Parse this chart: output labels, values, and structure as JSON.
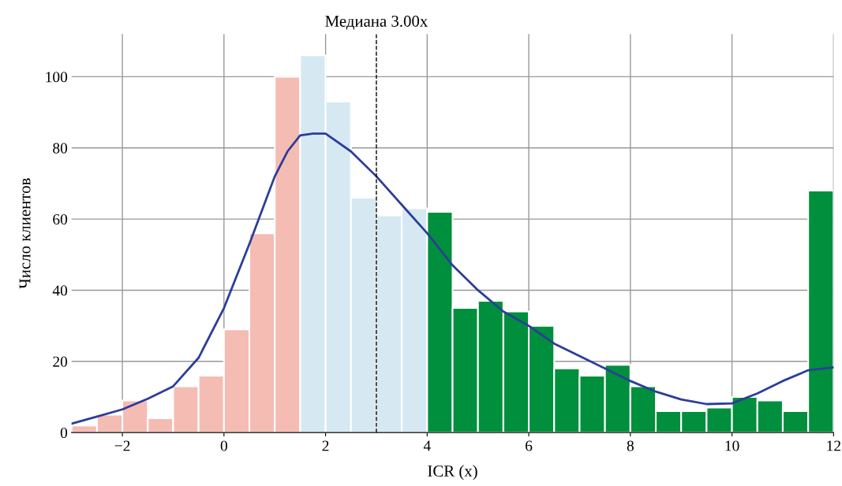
{
  "chart_data": {
    "type": "histogram",
    "xlabel": "ICR (x)",
    "ylabel": "Число клиентов",
    "bins": [
      -3,
      -2.5,
      -2,
      -1.5,
      -1,
      -0.5,
      0,
      0.5,
      1,
      1.5,
      2,
      2.5,
      3,
      3.5,
      4,
      4.5,
      5,
      5.5,
      6,
      6.5,
      7,
      7.5,
      8,
      8.5,
      9,
      9.5,
      10,
      10.5,
      11,
      11.5,
      12
    ],
    "series": [
      {
        "values": [
          2,
          5,
          9,
          4,
          13,
          16,
          29,
          56,
          100,
          106,
          93,
          66,
          61,
          63,
          62,
          35,
          37,
          34,
          30,
          18,
          16,
          19,
          13,
          6,
          6,
          7,
          10,
          9,
          6,
          68
        ],
        "colors": [
          "#f5bcb4",
          "#f5bcb4",
          "#f5bcb4",
          "#f5bcb4",
          "#f5bcb4",
          "#f5bcb4",
          "#f5bcb4",
          "#f5bcb4",
          "#f5bcb4",
          "#d6e9f2",
          "#d6e9f2",
          "#d6e9f2",
          "#d6e9f2",
          "#d6e9f2",
          "#008f3c",
          "#008f3c",
          "#008f3c",
          "#008f3c",
          "#008f3c",
          "#008f3c",
          "#008f3c",
          "#008f3c",
          "#008f3c",
          "#008f3c",
          "#008f3c",
          "#008f3c",
          "#008f3c",
          "#008f3c",
          "#008f3c",
          "#008f3c"
        ]
      },
      {
        "type": "line",
        "color": "#2c3e99",
        "x": [
          -3,
          -2.5,
          -2,
          -1.5,
          -1,
          -0.5,
          0,
          0.5,
          1,
          1.25,
          1.5,
          1.75,
          2,
          2.5,
          3,
          3.5,
          4,
          4.5,
          5,
          5.5,
          6,
          6.5,
          7,
          7.5,
          8,
          8.5,
          9,
          9.5,
          10,
          10.5,
          11,
          11.5,
          12
        ],
        "values": [
          2.5,
          4.5,
          6.5,
          9.5,
          13,
          21,
          35,
          53,
          72,
          79,
          83.5,
          84,
          84,
          79,
          72,
          64,
          56,
          47,
          40,
          34,
          30,
          25,
          21.5,
          18,
          14.5,
          11.5,
          9.3,
          8,
          8.2,
          11,
          14.5,
          17.5,
          18.3
        ]
      }
    ],
    "ref_lines": [
      {
        "axis": "x",
        "value": 3,
        "label": "Медиана 3.00x",
        "color": "#000000",
        "line_style": "dashed"
      }
    ],
    "xlim": [
      -3,
      12
    ],
    "xticks": [
      {
        "value": -2,
        "label": "−2"
      },
      0,
      2,
      4,
      6,
      8,
      10,
      12
    ],
    "ylim": [
      0,
      112
    ],
    "yticks": [
      0,
      20,
      40,
      60,
      80,
      100
    ],
    "grid": true,
    "legend": false
  }
}
